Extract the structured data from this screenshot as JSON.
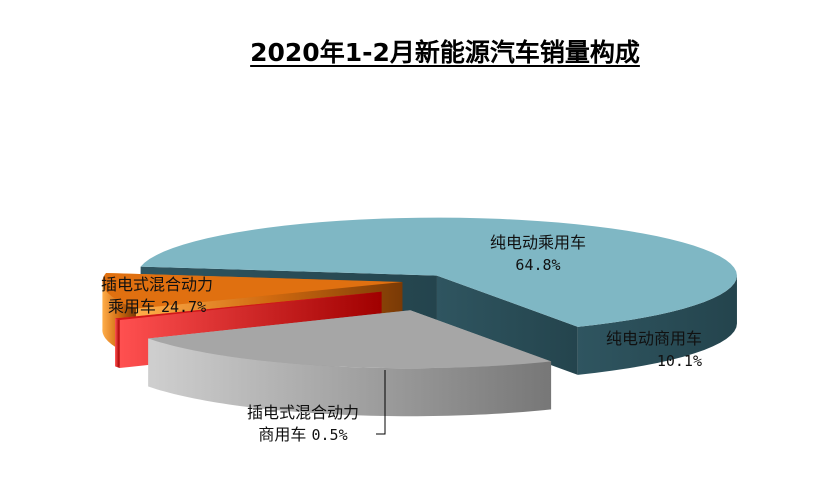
{
  "chart_data": {
    "type": "pie",
    "title": "2020年1-2月新能源汽车销量构成",
    "unit": "%",
    "slices": [
      {
        "label": "纯电动乘用车",
        "value": 64.8,
        "value_text": "64.8%",
        "color": "#7fb7c4"
      },
      {
        "label": "纯电动商用车",
        "value": 10.1,
        "value_text": "10.1%",
        "color": "#e07010"
      },
      {
        "label": "插电式混合动力商用车",
        "label_line1": "插电式混合动力",
        "label_line2": "商用车",
        "value": 0.5,
        "value_text": "0.5%",
        "color": "#d01818"
      },
      {
        "label": "插电式混合动力乘用车",
        "label_line1": "插电式混合动力",
        "label_line2": "乘用车",
        "value": 24.7,
        "value_text": "24.7%",
        "color": "#a6a6a6"
      }
    ],
    "style": "3d-exploded"
  }
}
